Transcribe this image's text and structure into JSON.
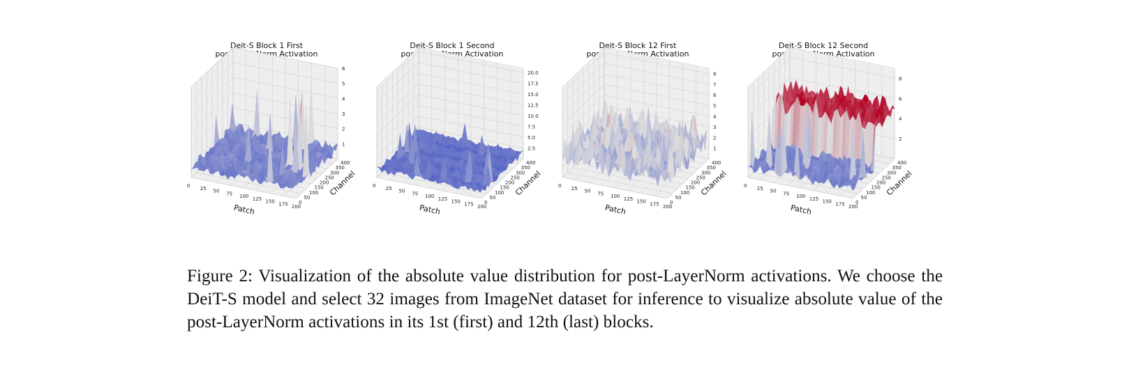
{
  "figure": {
    "caption": "Figure 2: Visualization of the absolute value distribution for post-LayerNorm activations. We choose the DeiT-S model and select 32 images from ImageNet dataset for inference to visualize absolute value of the post-LayerNorm activations in its 1st (first) and 12th (last) blocks."
  },
  "colors": {
    "low": "#3b4cc0",
    "mid": "#dddddd",
    "high": "#b40426",
    "pane": "#eeeeee",
    "grid": "#c8c8c8"
  },
  "chart_data": [
    {
      "type": "surface3d",
      "title_line1": "Deit-S Block 1 First",
      "title_line2": "post-LayerNorm Activation",
      "xlabel": "Patch",
      "ylabel": "Channel",
      "x_ticks": [
        0,
        25,
        50,
        75,
        100,
        125,
        150,
        175,
        200
      ],
      "y_ticks": [
        0,
        50,
        100,
        150,
        200,
        250,
        300,
        350,
        400
      ],
      "z_ticks": [
        "1",
        "2",
        "3",
        "4",
        "5",
        "6"
      ],
      "xlim": [
        0,
        200
      ],
      "ylim": [
        0,
        400
      ],
      "zlim": [
        0,
        6
      ],
      "colormap": "coolwarm",
      "pattern": "mostly low values with scattered tall spikes",
      "base_level": 0.8,
      "spike_heights": [
        2.5,
        3.2,
        4.6,
        5.2,
        3.8,
        2.9
      ]
    },
    {
      "type": "surface3d",
      "title_line1": "Deit-S Block 1 Second",
      "title_line2": "post-LayerNorm Activation",
      "xlabel": "Patch",
      "ylabel": "Channel",
      "x_ticks": [
        0,
        25,
        50,
        75,
        100,
        125,
        150,
        175,
        200
      ],
      "y_ticks": [
        0,
        50,
        100,
        150,
        200,
        250,
        300,
        350,
        400
      ],
      "z_ticks": [
        "2.5",
        "5.0",
        "7.5",
        "10.0",
        "12.5",
        "15.0",
        "17.5",
        "20.0"
      ],
      "xlim": [
        0,
        200
      ],
      "ylim": [
        0,
        400
      ],
      "zlim": [
        0,
        21
      ],
      "colormap": "coolwarm",
      "pattern": "flat low surface with banded ridges and a few spikes",
      "base_level": 1.5,
      "spike_heights": [
        6.5,
        8.0,
        5.5
      ]
    },
    {
      "type": "surface3d",
      "title_line1": "Deit-S Block 12 First",
      "title_line2": "post-LayerNorm Activation",
      "xlabel": "Patch",
      "ylabel": "Channel",
      "x_ticks": [
        0,
        25,
        50,
        75,
        100,
        125,
        150,
        175,
        200
      ],
      "y_ticks": [
        0,
        50,
        100,
        150,
        200,
        250,
        300,
        350,
        400
      ],
      "z_ticks": [
        "1",
        "2",
        "3",
        "4",
        "5",
        "6",
        "7",
        "8"
      ],
      "xlim": [
        0,
        200
      ],
      "ylim": [
        0,
        400
      ],
      "zlim": [
        0,
        8.5
      ],
      "colormap": "coolwarm",
      "pattern": "mid-level surface with frequent warm bands",
      "base_level": 2.0,
      "spike_heights": [
        3.6,
        4.2,
        3.9
      ]
    },
    {
      "type": "surface3d",
      "title_line1": "Deit-S Block 12 Second",
      "title_line2": "post-LayerNorm Activation",
      "xlabel": "Patch",
      "ylabel": "Channel",
      "x_ticks": [
        0,
        25,
        50,
        75,
        100,
        125,
        150,
        175,
        200
      ],
      "y_ticks": [
        0,
        50,
        100,
        150,
        200,
        250,
        300,
        350,
        400
      ],
      "z_ticks": [
        "2",
        "4",
        "6",
        "8"
      ],
      "xlim": [
        0,
        200
      ],
      "ylim": [
        0,
        400
      ],
      "zlim": [
        0,
        9
      ],
      "colormap": "coolwarm",
      "pattern": "low region in front, high warm plateau at back channels",
      "base_level": 1.2,
      "spike_heights": [
        5.5,
        6.2,
        5.0
      ]
    }
  ]
}
